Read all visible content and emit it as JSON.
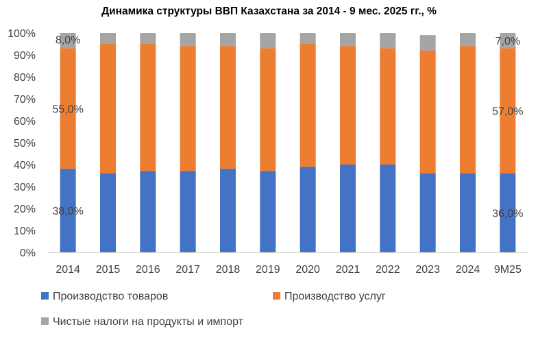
{
  "chart_data": {
    "type": "bar",
    "stacked": true,
    "title": "Динамика структуры ВВП Казахстана за 2014 - 9 мес. 2025 гг., %",
    "categories": [
      "2014",
      "2015",
      "2016",
      "2017",
      "2018",
      "2019",
      "2020",
      "2021",
      "2022",
      "2023",
      "2024",
      "9M25"
    ],
    "series": [
      {
        "name": "Производство товаров",
        "color": "#4472C4",
        "values": [
          38,
          36,
          37,
          37,
          38,
          37,
          39,
          40,
          40,
          36,
          36,
          36
        ]
      },
      {
        "name": "Производство услуг",
        "color": "#ED7D31",
        "values": [
          55,
          59,
          58,
          57,
          56,
          56,
          56,
          54,
          53,
          56,
          58,
          57
        ]
      },
      {
        "name": "Чистые налоги на продукты и импорт",
        "color": "#A5A5A5",
        "values": [
          8,
          5,
          5,
          6,
          6,
          7,
          5,
          6,
          7,
          7,
          6,
          7
        ]
      }
    ],
    "ylim": [
      0,
      100
    ],
    "yticks": [
      "0%",
      "10%",
      "20%",
      "30%",
      "40%",
      "50%",
      "60%",
      "70%",
      "80%",
      "90%",
      "100%"
    ],
    "data_labels": [
      {
        "category": "2014",
        "series": 0,
        "text": "38,0%"
      },
      {
        "category": "2014",
        "series": 1,
        "text": "55,0%"
      },
      {
        "category": "2014",
        "series": 2,
        "text": "8,0%"
      },
      {
        "category": "9M25",
        "series": 0,
        "text": "36,0%"
      },
      {
        "category": "9M25",
        "series": 1,
        "text": "57,0%"
      },
      {
        "category": "9M25",
        "series": 2,
        "text": "7,0%"
      }
    ],
    "grid": false,
    "legend_position": "bottom"
  }
}
